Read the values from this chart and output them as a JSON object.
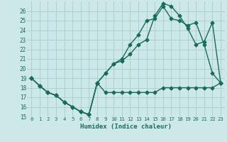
{
  "title": "",
  "xlabel": "Humidex (Indice chaleur)",
  "bg_color": "#cce8e8",
  "grid_color": "#aacccc",
  "line_color": "#1a6b5a",
  "xlim": [
    -0.5,
    23.5
  ],
  "ylim": [
    15,
    27
  ],
  "xticks": [
    0,
    1,
    2,
    3,
    4,
    5,
    6,
    7,
    8,
    9,
    10,
    11,
    12,
    13,
    14,
    15,
    16,
    17,
    18,
    19,
    20,
    21,
    22,
    23
  ],
  "yticks": [
    15,
    16,
    17,
    18,
    19,
    20,
    21,
    22,
    23,
    24,
    25,
    26
  ],
  "line1_x": [
    0,
    1,
    2,
    3,
    4,
    5,
    6,
    7,
    8,
    9,
    10,
    11,
    12,
    13,
    14,
    15,
    16,
    17,
    18,
    19,
    20,
    21,
    22,
    23
  ],
  "line1_y": [
    19.0,
    18.2,
    17.5,
    17.2,
    16.5,
    16.0,
    15.5,
    15.2,
    18.5,
    17.5,
    17.5,
    17.5,
    17.5,
    17.5,
    17.5,
    17.5,
    18.0,
    18.0,
    18.0,
    18.0,
    18.0,
    18.0,
    18.0,
    18.5
  ],
  "line2_x": [
    0,
    1,
    2,
    3,
    4,
    5,
    6,
    7,
    8,
    9,
    10,
    11,
    12,
    13,
    14,
    15,
    16,
    17,
    18,
    19,
    20,
    21,
    22,
    23
  ],
  "line2_y": [
    19.0,
    18.2,
    17.5,
    17.2,
    16.5,
    16.0,
    15.5,
    15.2,
    18.5,
    19.5,
    20.5,
    21.0,
    22.5,
    23.5,
    25.0,
    25.2,
    26.5,
    25.2,
    25.0,
    24.5,
    24.8,
    22.5,
    19.5,
    18.5
  ],
  "line3_x": [
    0,
    1,
    2,
    3,
    4,
    5,
    6,
    7,
    8,
    9,
    10,
    11,
    12,
    13,
    14,
    15,
    16,
    17,
    18,
    19,
    20,
    21,
    22,
    23
  ],
  "line3_y": [
    19.0,
    18.2,
    17.5,
    17.2,
    16.5,
    16.0,
    15.5,
    15.2,
    18.5,
    19.5,
    20.5,
    20.8,
    21.5,
    22.5,
    23.0,
    25.5,
    26.8,
    26.5,
    25.5,
    24.2,
    22.5,
    22.8,
    24.8,
    18.5
  ],
  "marker": "D",
  "markersize": 2.5,
  "linewidth": 1.0
}
